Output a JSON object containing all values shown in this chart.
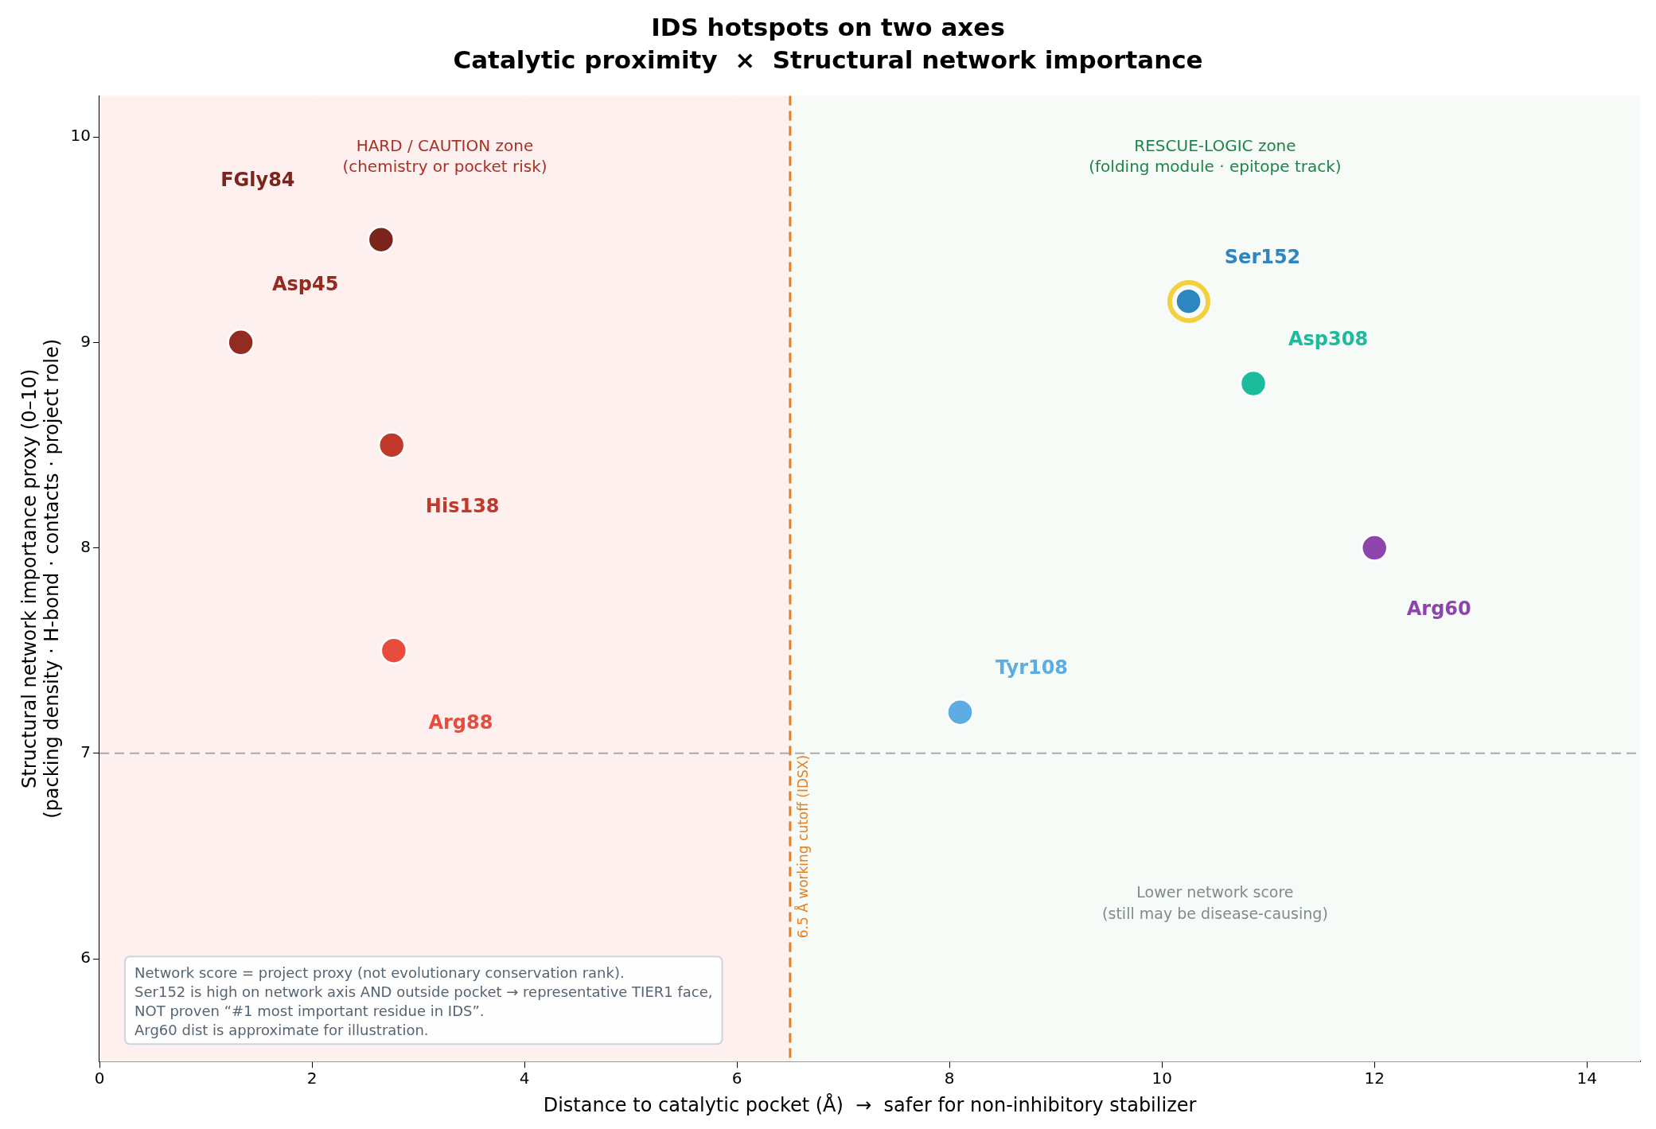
{
  "chart_data": {
    "type": "scatter",
    "title": "IDS hotspots on two axes",
    "subtitle": "Catalytic proximity  ×  Structural network importance",
    "xlabel": "Distance to catalytic pocket (Å)  →  safer for non-inhibitory stabilizer",
    "ylabel": "Structural network importance proxy (0–10)\n(packing density · H-bond · contacts · project role)",
    "xlim": [
      0,
      14.5
    ],
    "xticks": [
      0,
      2,
      4,
      6,
      8,
      10,
      12,
      14
    ],
    "ylim": [
      5.5,
      10.2
    ],
    "yticks": [
      6,
      7,
      8,
      9,
      10
    ],
    "grid": true,
    "legend": false,
    "marker": "circle",
    "series": [
      {
        "name": "FGly84",
        "color": "#7b241c",
        "x": [
          2.65
        ],
        "values": [
          9.5
        ]
      },
      {
        "name": "Asp45",
        "color": "#922b21",
        "x": [
          1.33
        ],
        "values": [
          9.0
        ]
      },
      {
        "name": "His138",
        "color": "#c0392b",
        "x": [
          2.75
        ],
        "values": [
          8.5
        ]
      },
      {
        "name": "Arg88",
        "color": "#e74c3c",
        "x": [
          2.77
        ],
        "values": [
          7.5
        ]
      },
      {
        "name": "Ser152",
        "color": "#2e86c1",
        "x": [
          10.25
        ],
        "values": [
          9.2
        ]
      },
      {
        "name": "Asp308",
        "color": "#1abc9c",
        "x": [
          10.86
        ],
        "values": [
          8.8
        ]
      },
      {
        "name": "Arg60",
        "color": "#8e44ad",
        "x": [
          12.0
        ],
        "values": [
          8.0
        ]
      },
      {
        "name": "Tyr108",
        "color": "#5dade2",
        "x": [
          8.1
        ],
        "values": [
          7.2
        ]
      }
    ],
    "bands": [
      {
        "axis": "x",
        "from": 0,
        "to": 6.5,
        "label": "HARD / CAUTION zone\n(chemistry or pocket risk)",
        "color": "#fdf0ee"
      },
      {
        "axis": "x",
        "from": 6.5,
        "to": 14.5,
        "label": "RESCUE-LOGIC zone\n(folding module · epitope track)",
        "color": "#f6fbf7"
      }
    ],
    "ref_lines": [
      {
        "axis": "x",
        "value": 6.5,
        "label": "6.5 Å working cutoff (IDSX)",
        "color": "#e67e22",
        "line_style": "dashed"
      },
      {
        "axis": "y",
        "value": 7,
        "color": "#aaaaaa",
        "line_style": "dashed"
      }
    ],
    "annotations": [
      "Lower network score\n(still may be disease-causing)",
      "Network score = project proxy (not evolutionary conservation rank).\nSer152 is high on network axis AND outside pocket → representative TIER1 face,\nNOT proven “#1 most important residue in IDS”.\nArg60 dist is approximate for illustration."
    ]
  }
}
